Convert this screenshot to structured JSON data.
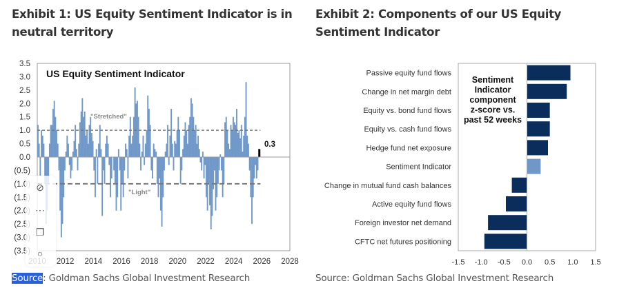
{
  "exhibit1": {
    "title": "Exhibit 1: US Equity Sentiment Indicator is in neutral territory",
    "source_label": "Source",
    "source_text": ": Goldman Sachs Global Investment Research"
  },
  "exhibit2": {
    "title": "Exhibit 2: Components of our US Equity Sentiment Indicator",
    "source_text": "Source: Goldman Sachs Global Investment Research"
  },
  "toolbar": {
    "icons": [
      "eye-off-icon",
      "more-icon",
      "copy-icon",
      "search-icon"
    ]
  },
  "chart_data": [
    {
      "type": "bar",
      "title": "US Equity Sentiment Indicator",
      "xlabel": "",
      "ylabel": "",
      "ylim": [
        -3.5,
        3.5
      ],
      "xlim": [
        2010,
        2028
      ],
      "yticks": [
        "3.5",
        "3.0",
        "2.5",
        "2.0",
        "1.5",
        "1.0",
        "0.5",
        "0.0",
        "(0.5)",
        "(1.0)",
        "(1.5)",
        "(2.0)",
        "(2.5)",
        "(3.0)",
        "(3.5)"
      ],
      "xticks": [
        "2010",
        "2012",
        "2014",
        "2016",
        "2018",
        "2020",
        "2022",
        "2024",
        "2026",
        "2028"
      ],
      "annotations": {
        "stretched": "\"Stretched\"",
        "light": "\"Light\"",
        "latest": "0.3"
      },
      "thresholds": [
        1.0,
        -1.0
      ],
      "start_year": 2010,
      "frequency": "monthly",
      "values": [
        1.2,
        0.5,
        -0.7,
        1.0,
        0.8,
        0.5,
        -1.0,
        -2.5,
        -2.0,
        -1.0,
        0.5,
        1.2,
        1.2,
        1.8,
        2.1,
        1.5,
        1.0,
        0.5,
        -0.5,
        -2.0,
        -3.0,
        -2.5,
        -1.5,
        -0.5,
        0.2,
        0.8,
        0.5,
        -0.3,
        -0.8,
        -0.5,
        0.2,
        0.6,
        1.2,
        0.3,
        -0.5,
        0.5,
        1.3,
        1.7,
        2.2,
        1.5,
        1.7,
        0.8,
        1.0,
        0.5,
        1.2,
        1.5,
        0.9,
        0.6,
        -0.5,
        -1.5,
        0.3,
        -1.0,
        0.5,
        1.2,
        0.3,
        -2.2,
        -0.5,
        -1.0,
        0.5,
        0.8,
        0.5,
        -0.3,
        -1.5,
        -0.8,
        0.0,
        -0.5,
        -1.0,
        -2.0,
        -1.5,
        0.3,
        -0.5,
        -2.0,
        -1.0,
        -1.5,
        -0.5,
        0.5,
        0.3,
        -0.8,
        0.8,
        1.5,
        0.5,
        0.8,
        1.5,
        2.6,
        2.0,
        2.1,
        1.5,
        0.5,
        -0.5,
        0.2,
        0.8,
        -0.3,
        0.5,
        1.0,
        2.3,
        1.8,
        1.2,
        -0.5,
        -0.8,
        0.5,
        0.3,
        0.2,
        -1.0,
        -1.5,
        -0.8,
        -2.0,
        -2.6,
        -1.5,
        -0.5,
        0.2,
        0.5,
        1.2,
        -0.3,
        0.8,
        1.8,
        0.5,
        -0.5,
        0.6,
        0.5,
        1.0,
        1.5,
        1.0,
        -1.0,
        -0.5,
        0.3,
        0.8,
        1.3,
        1.0,
        0.5,
        1.2,
        1.5,
        2.2,
        2.0,
        1.5,
        1.0,
        1.2,
        0.5,
        0.8,
        0.3,
        -0.2,
        -0.5,
        0.2,
        -0.8,
        -0.3,
        -1.5,
        -2.0,
        -1.0,
        -1.8,
        -2.7,
        -2.2,
        -1.2,
        -0.5,
        -2.0,
        -1.5,
        -1.0,
        -0.5,
        0.1,
        -0.5,
        -1.5,
        -1.0,
        1.3,
        1.5,
        1.0,
        0.5,
        0.3,
        1.2,
        1.0,
        1.5,
        1.3,
        1.2,
        1.8,
        0.9,
        1.0,
        0.7,
        1.2,
        0.2,
        0.8,
        1.5,
        2.8,
        0.8,
        0.5,
        -0.5,
        -1.5,
        -2.5,
        -1.5,
        -0.8,
        -0.3,
        -0.8,
        -0.5,
        0.3
      ],
      "colors": {
        "bars": "#7098c8",
        "latest": "#000000",
        "threshold": "#777777"
      }
    },
    {
      "type": "bar",
      "orientation": "horizontal",
      "title": "",
      "annotation": [
        "Sentiment",
        "Indicator",
        "component",
        "z-score vs.",
        "past 52 weeks"
      ],
      "categories": [
        "Passive equity fund flows",
        "Change in net margin debt",
        "Equity vs. bond fund flows",
        "Equity vs. cash fund flows",
        "Hedge fund net exposure",
        "Sentiment Indicator",
        "Change in mutual fund cash balances",
        "Active equity fund flows",
        "Foreign investor net demand",
        "CFTC net futures positioning"
      ],
      "values": [
        0.95,
        0.87,
        0.5,
        0.5,
        0.46,
        0.3,
        -0.33,
        -0.46,
        -0.85,
        -0.93
      ],
      "xlim": [
        -1.5,
        1.5
      ],
      "xticks": [
        "-1.5",
        "-1.0",
        "-0.5",
        "0.0",
        "0.5",
        "1.0",
        "1.5"
      ],
      "highlight": "Sentiment Indicator",
      "colors": {
        "bars": "#0b2d5b",
        "highlight": "#6f98c9"
      }
    }
  ]
}
